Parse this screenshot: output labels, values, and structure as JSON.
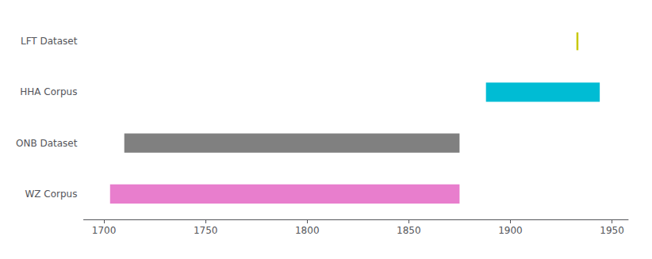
{
  "chart_data": {
    "type": "bar",
    "orientation": "horizontal",
    "categories": [
      "LFT Dataset",
      "HHA Corpus",
      "ONB Dataset",
      "WZ Corpus"
    ],
    "starts": [
      null,
      1888,
      1710,
      1703
    ],
    "ends": [
      null,
      1944,
      1875,
      1875
    ],
    "lines": [
      1933,
      null,
      null,
      null
    ],
    "colors": [
      "#c8c800",
      "#00bcd4",
      "#808080",
      "#e87ecd"
    ],
    "xlim": [
      1690,
      1958
    ],
    "xticks": [
      1700,
      1750,
      1800,
      1850,
      1900,
      1950
    ],
    "grid": false
  }
}
